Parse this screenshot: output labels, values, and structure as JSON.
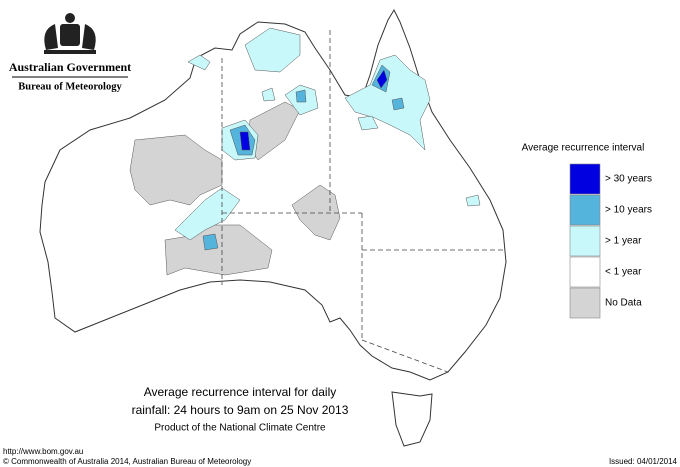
{
  "header": {
    "title": "Australian Government",
    "subtitle": "Bureau of Meteorology"
  },
  "legend": {
    "title": "Average recurrence interval",
    "items": [
      {
        "label": "> 30 years",
        "color": "#0000e0"
      },
      {
        "label": "> 10 years",
        "color": "#55b4dc"
      },
      {
        "label": "> 1 year",
        "color": "#c8f8fa"
      },
      {
        "label": "< 1 year",
        "color": "#ffffff"
      },
      {
        "label": "No Data",
        "color": "#d4d4d4"
      }
    ]
  },
  "caption": {
    "lines": [
      "Average recurrence interval for daily",
      "rainfall: 24 hours to 9am on 25 Nov 2013",
      "Product of the National Climate Centre"
    ]
  },
  "footer": {
    "url": "http://www.bom.gov.au",
    "copyright": "© Commonwealth of Australia 2014, Australian Bureau of Meteorology",
    "issued": "Issued: 04/01/2014"
  }
}
